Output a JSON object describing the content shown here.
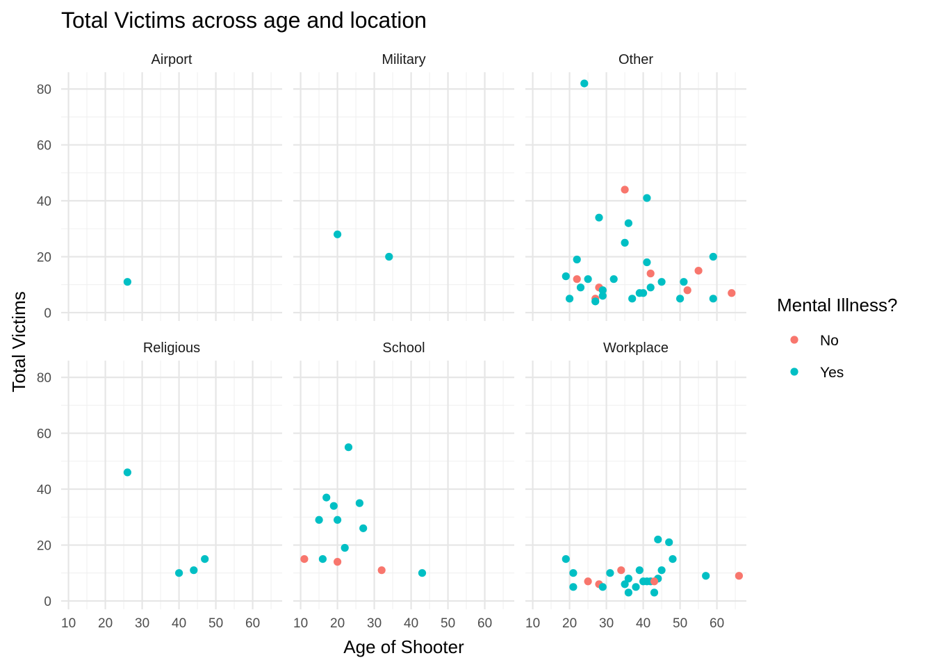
{
  "chart_data": {
    "type": "scatter",
    "title": "Total Victims across age and location",
    "xlabel": "Age of Shooter",
    "ylabel": "Total Victims",
    "xlim": [
      8,
      68
    ],
    "ylim": [
      -3,
      86
    ],
    "x_ticks": [
      10,
      20,
      30,
      40,
      50,
      60
    ],
    "y_ticks": [
      0,
      20,
      40,
      60,
      80
    ],
    "x_tick_labels": [
      "10",
      "20",
      "30",
      "40",
      "50",
      "60"
    ],
    "y_tick_labels": [
      "0",
      "20",
      "40",
      "60",
      "80"
    ],
    "grid": true,
    "legend": {
      "title": "Mental Illness?",
      "placement": "right",
      "entries": [
        {
          "label": "No",
          "color": "#F8766D"
        },
        {
          "label": "Yes",
          "color": "#00BFC4"
        }
      ]
    },
    "panels": [
      {
        "name": "Airport",
        "points": [
          {
            "x": 26,
            "y": 11,
            "illness": "Yes"
          }
        ]
      },
      {
        "name": "Military",
        "points": [
          {
            "x": 20,
            "y": 28,
            "illness": "Yes"
          },
          {
            "x": 34,
            "y": 20,
            "illness": "Yes"
          }
        ]
      },
      {
        "name": "Other",
        "points": [
          {
            "x": 24,
            "y": 82,
            "illness": "Yes"
          },
          {
            "x": 35,
            "y": 44,
            "illness": "No"
          },
          {
            "x": 41,
            "y": 41,
            "illness": "Yes"
          },
          {
            "x": 28,
            "y": 34,
            "illness": "Yes"
          },
          {
            "x": 36,
            "y": 32,
            "illness": "Yes"
          },
          {
            "x": 35,
            "y": 25,
            "illness": "Yes"
          },
          {
            "x": 59,
            "y": 20,
            "illness": "Yes"
          },
          {
            "x": 22,
            "y": 19,
            "illness": "Yes"
          },
          {
            "x": 41,
            "y": 18,
            "illness": "Yes"
          },
          {
            "x": 55,
            "y": 15,
            "illness": "No"
          },
          {
            "x": 42,
            "y": 14,
            "illness": "No"
          },
          {
            "x": 19,
            "y": 13,
            "illness": "Yes"
          },
          {
            "x": 22,
            "y": 12,
            "illness": "No"
          },
          {
            "x": 25,
            "y": 12,
            "illness": "Yes"
          },
          {
            "x": 32,
            "y": 12,
            "illness": "Yes"
          },
          {
            "x": 45,
            "y": 11,
            "illness": "Yes"
          },
          {
            "x": 51,
            "y": 11,
            "illness": "Yes"
          },
          {
            "x": 23,
            "y": 9,
            "illness": "Yes"
          },
          {
            "x": 28,
            "y": 9,
            "illness": "No"
          },
          {
            "x": 42,
            "y": 9,
            "illness": "Yes"
          },
          {
            "x": 29,
            "y": 8,
            "illness": "Yes"
          },
          {
            "x": 52,
            "y": 8,
            "illness": "No"
          },
          {
            "x": 39,
            "y": 7,
            "illness": "Yes"
          },
          {
            "x": 40,
            "y": 7,
            "illness": "Yes"
          },
          {
            "x": 64,
            "y": 7,
            "illness": "No"
          },
          {
            "x": 29,
            "y": 6,
            "illness": "Yes"
          },
          {
            "x": 20,
            "y": 5,
            "illness": "Yes"
          },
          {
            "x": 27,
            "y": 5,
            "illness": "No"
          },
          {
            "x": 37,
            "y": 5,
            "illness": "Yes"
          },
          {
            "x": 50,
            "y": 5,
            "illness": "Yes"
          },
          {
            "x": 59,
            "y": 5,
            "illness": "Yes"
          },
          {
            "x": 27,
            "y": 4,
            "illness": "Yes"
          }
        ]
      },
      {
        "name": "Religious",
        "points": [
          {
            "x": 26,
            "y": 46,
            "illness": "Yes"
          },
          {
            "x": 47,
            "y": 15,
            "illness": "Yes"
          },
          {
            "x": 44,
            "y": 11,
            "illness": "Yes"
          },
          {
            "x": 40,
            "y": 10,
            "illness": "Yes"
          }
        ]
      },
      {
        "name": "School",
        "points": [
          {
            "x": 23,
            "y": 55,
            "illness": "Yes"
          },
          {
            "x": 17,
            "y": 37,
            "illness": "Yes"
          },
          {
            "x": 26,
            "y": 35,
            "illness": "Yes"
          },
          {
            "x": 19,
            "y": 34,
            "illness": "Yes"
          },
          {
            "x": 15,
            "y": 29,
            "illness": "Yes"
          },
          {
            "x": 20,
            "y": 29,
            "illness": "Yes"
          },
          {
            "x": 27,
            "y": 26,
            "illness": "Yes"
          },
          {
            "x": 22,
            "y": 19,
            "illness": "Yes"
          },
          {
            "x": 11,
            "y": 15,
            "illness": "No"
          },
          {
            "x": 16,
            "y": 15,
            "illness": "Yes"
          },
          {
            "x": 20,
            "y": 14,
            "illness": "No"
          },
          {
            "x": 32,
            "y": 11,
            "illness": "No"
          },
          {
            "x": 43,
            "y": 10,
            "illness": "Yes"
          }
        ]
      },
      {
        "name": "Workplace",
        "points": [
          {
            "x": 44,
            "y": 22,
            "illness": "Yes"
          },
          {
            "x": 47,
            "y": 21,
            "illness": "Yes"
          },
          {
            "x": 19,
            "y": 15,
            "illness": "Yes"
          },
          {
            "x": 48,
            "y": 15,
            "illness": "Yes"
          },
          {
            "x": 34,
            "y": 11,
            "illness": "No"
          },
          {
            "x": 39,
            "y": 11,
            "illness": "Yes"
          },
          {
            "x": 45,
            "y": 11,
            "illness": "Yes"
          },
          {
            "x": 21,
            "y": 10,
            "illness": "Yes"
          },
          {
            "x": 31,
            "y": 10,
            "illness": "Yes"
          },
          {
            "x": 57,
            "y": 9,
            "illness": "Yes"
          },
          {
            "x": 66,
            "y": 9,
            "illness": "No"
          },
          {
            "x": 36,
            "y": 8,
            "illness": "Yes"
          },
          {
            "x": 44,
            "y": 8,
            "illness": "Yes"
          },
          {
            "x": 25,
            "y": 7,
            "illness": "No"
          },
          {
            "x": 40,
            "y": 7,
            "illness": "Yes"
          },
          {
            "x": 41,
            "y": 7,
            "illness": "Yes"
          },
          {
            "x": 42,
            "y": 7,
            "illness": "Yes"
          },
          {
            "x": 43,
            "y": 7,
            "illness": "No"
          },
          {
            "x": 28,
            "y": 6,
            "illness": "No"
          },
          {
            "x": 35,
            "y": 6,
            "illness": "Yes"
          },
          {
            "x": 21,
            "y": 5,
            "illness": "Yes"
          },
          {
            "x": 29,
            "y": 5,
            "illness": "Yes"
          },
          {
            "x": 38,
            "y": 5,
            "illness": "Yes"
          },
          {
            "x": 36,
            "y": 3,
            "illness": "Yes"
          },
          {
            "x": 43,
            "y": 3,
            "illness": "Yes"
          }
        ]
      }
    ]
  }
}
